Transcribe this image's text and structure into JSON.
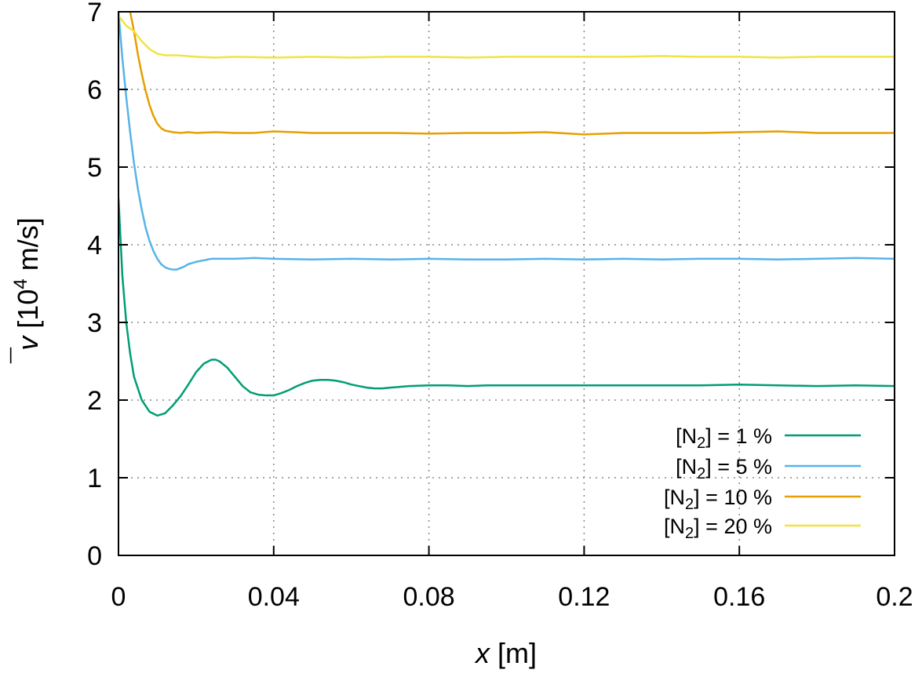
{
  "chart_data": {
    "type": "line",
    "xlabel": {
      "var": "x",
      "unit": " [m]"
    },
    "ylabel": {
      "var": "v",
      "bar": "¯",
      "unit_pre": " [10",
      "unit_exp": "4",
      "unit_post": " m/s]"
    },
    "xlim": [
      0,
      0.2
    ],
    "ylim": [
      0,
      7
    ],
    "x_ticks": [
      0,
      0.04,
      0.08,
      0.12,
      0.16,
      0.2
    ],
    "x_tick_labels": [
      "0",
      "0.04",
      "0.08",
      "0.12",
      "0.16",
      "0.2"
    ],
    "y_ticks": [
      0,
      1,
      2,
      3,
      4,
      5,
      6,
      7
    ],
    "y_tick_labels": [
      "0",
      "1",
      "2",
      "3",
      "4",
      "5",
      "6",
      "7"
    ],
    "grid": true,
    "legend_position": "bottom-right",
    "series": [
      {
        "name": "[N2] =  1 %",
        "legend": {
          "pre": "[N",
          "sub": "2",
          "post": "] =  1 %"
        },
        "color": "#009e73",
        "x": [
          0,
          0.001,
          0.002,
          0.003,
          0.004,
          0.006,
          0.008,
          0.01,
          0.012,
          0.014,
          0.016,
          0.018,
          0.02,
          0.022,
          0.024,
          0.025,
          0.026,
          0.028,
          0.03,
          0.032,
          0.034,
          0.036,
          0.038,
          0.04,
          0.042,
          0.044,
          0.046,
          0.048,
          0.05,
          0.052,
          0.054,
          0.056,
          0.058,
          0.06,
          0.062,
          0.064,
          0.066,
          0.068,
          0.07,
          0.075,
          0.08,
          0.085,
          0.09,
          0.095,
          0.1,
          0.11,
          0.12,
          0.13,
          0.14,
          0.15,
          0.16,
          0.17,
          0.18,
          0.19,
          0.2
        ],
        "y": [
          4.6,
          3.6,
          3.0,
          2.6,
          2.3,
          2.0,
          1.85,
          1.8,
          1.83,
          1.93,
          2.05,
          2.2,
          2.36,
          2.47,
          2.52,
          2.52,
          2.5,
          2.42,
          2.3,
          2.18,
          2.1,
          2.07,
          2.06,
          2.06,
          2.09,
          2.13,
          2.18,
          2.22,
          2.25,
          2.26,
          2.26,
          2.25,
          2.23,
          2.2,
          2.18,
          2.16,
          2.15,
          2.15,
          2.16,
          2.18,
          2.19,
          2.19,
          2.18,
          2.19,
          2.19,
          2.19,
          2.19,
          2.19,
          2.19,
          2.19,
          2.2,
          2.19,
          2.18,
          2.19,
          2.18
        ]
      },
      {
        "name": "[N2] =  5 %",
        "legend": {
          "pre": "[N",
          "sub": "2",
          "post": "] =  5 %"
        },
        "color": "#56b4e9",
        "x": [
          0,
          0.001,
          0.002,
          0.003,
          0.004,
          0.005,
          0.006,
          0.007,
          0.008,
          0.009,
          0.01,
          0.011,
          0.012,
          0.013,
          0.014,
          0.015,
          0.016,
          0.017,
          0.018,
          0.02,
          0.022,
          0.024,
          0.026,
          0.028,
          0.03,
          0.035,
          0.04,
          0.05,
          0.06,
          0.07,
          0.08,
          0.09,
          0.1,
          0.11,
          0.12,
          0.13,
          0.14,
          0.15,
          0.16,
          0.17,
          0.18,
          0.19,
          0.2
        ],
        "y": [
          7.0,
          6.4,
          5.9,
          5.45,
          5.05,
          4.72,
          4.45,
          4.22,
          4.05,
          3.92,
          3.82,
          3.75,
          3.71,
          3.69,
          3.68,
          3.68,
          3.7,
          3.72,
          3.75,
          3.78,
          3.8,
          3.82,
          3.82,
          3.82,
          3.82,
          3.83,
          3.82,
          3.81,
          3.82,
          3.81,
          3.82,
          3.81,
          3.81,
          3.82,
          3.81,
          3.82,
          3.81,
          3.82,
          3.82,
          3.81,
          3.82,
          3.83,
          3.82
        ]
      },
      {
        "name": "[N2] = 10 %",
        "legend": {
          "pre": "[N",
          "sub": "2",
          "post": "] = 10 %"
        },
        "color": "#e69f00",
        "x": [
          0.003,
          0.004,
          0.005,
          0.006,
          0.007,
          0.008,
          0.009,
          0.01,
          0.011,
          0.012,
          0.014,
          0.016,
          0.018,
          0.02,
          0.025,
          0.03,
          0.035,
          0.04,
          0.05,
          0.06,
          0.07,
          0.08,
          0.09,
          0.1,
          0.11,
          0.12,
          0.13,
          0.14,
          0.15,
          0.16,
          0.17,
          0.18,
          0.19,
          0.2
        ],
        "y": [
          7.0,
          6.75,
          6.45,
          6.2,
          5.98,
          5.8,
          5.66,
          5.56,
          5.5,
          5.47,
          5.45,
          5.44,
          5.45,
          5.44,
          5.45,
          5.44,
          5.44,
          5.46,
          5.44,
          5.44,
          5.44,
          5.43,
          5.44,
          5.44,
          5.45,
          5.42,
          5.44,
          5.44,
          5.44,
          5.45,
          5.46,
          5.44,
          5.44,
          5.44
        ]
      },
      {
        "name": "[N2] = 20 %",
        "legend": {
          "pre": "[N",
          "sub": "2",
          "post": "] = 20 %"
        },
        "color": "#f0e442",
        "x": [
          0,
          0.002,
          0.004,
          0.006,
          0.008,
          0.01,
          0.012,
          0.015,
          0.02,
          0.025,
          0.03,
          0.04,
          0.05,
          0.06,
          0.07,
          0.08,
          0.09,
          0.1,
          0.11,
          0.12,
          0.13,
          0.14,
          0.15,
          0.16,
          0.17,
          0.18,
          0.19,
          0.2
        ],
        "y": [
          6.95,
          6.82,
          6.75,
          6.62,
          6.52,
          6.46,
          6.44,
          6.44,
          6.42,
          6.41,
          6.42,
          6.41,
          6.42,
          6.41,
          6.42,
          6.42,
          6.41,
          6.42,
          6.42,
          6.42,
          6.42,
          6.43,
          6.42,
          6.42,
          6.41,
          6.42,
          6.42,
          6.42
        ]
      }
    ]
  }
}
